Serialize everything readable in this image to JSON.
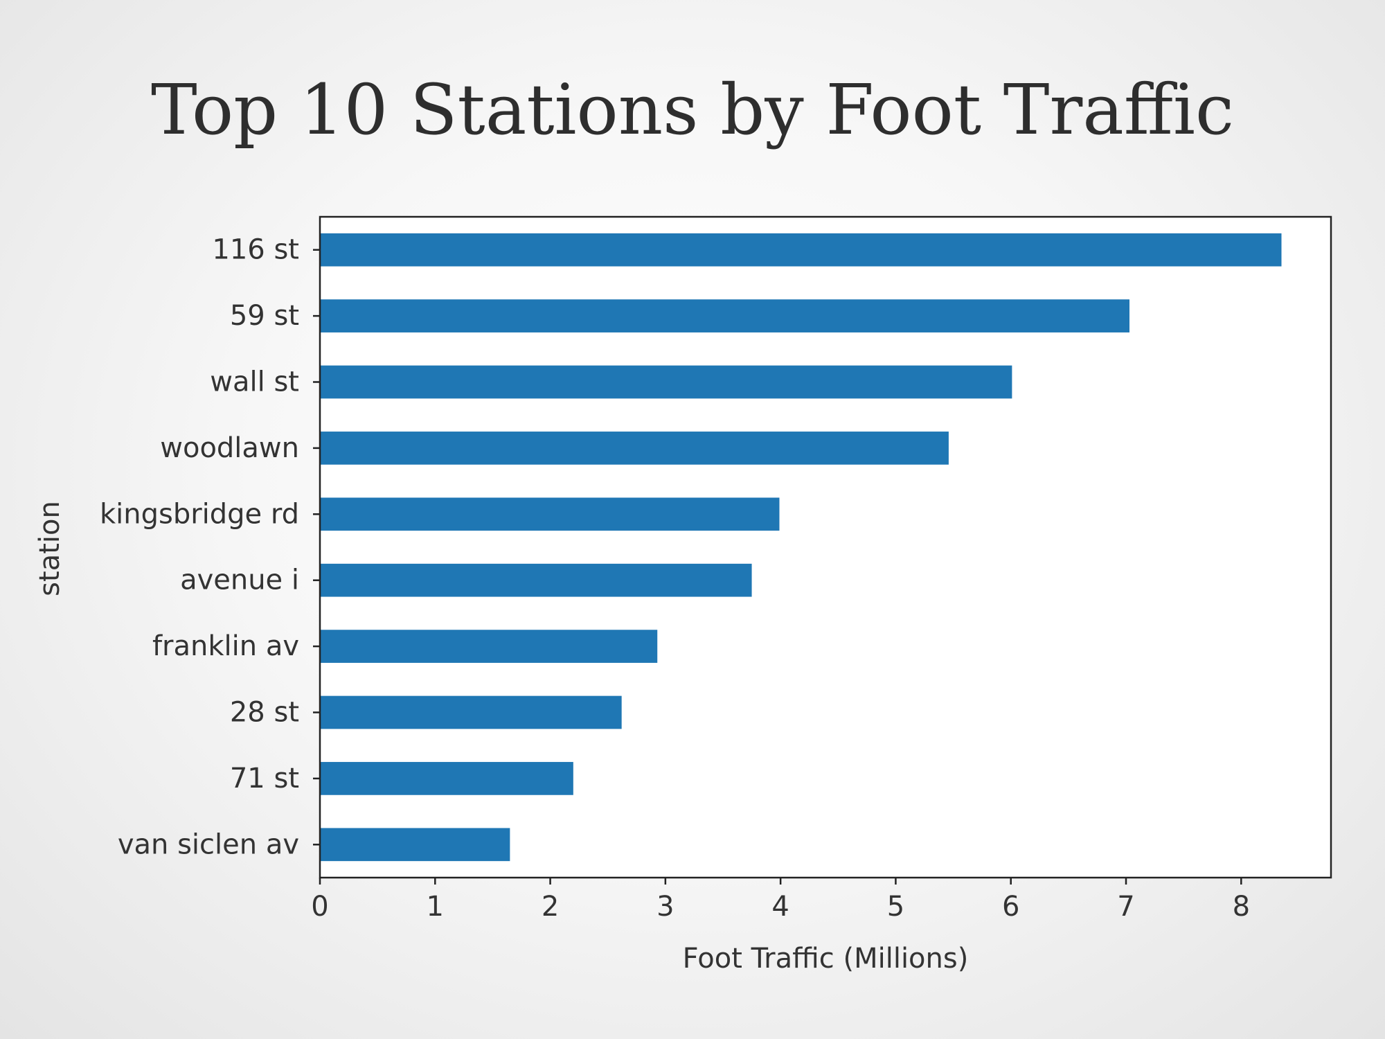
{
  "slide": {
    "title": "Top 10 Stations by Foot Traffic"
  },
  "chart_data": {
    "type": "bar",
    "orientation": "horizontal",
    "title": "",
    "xlabel": "Foot Traffic (Millions)",
    "ylabel": "station",
    "categories": [
      "116 st",
      "59 st",
      "wall st",
      "woodlawn",
      "kingsbridge rd",
      "avenue i",
      "franklin av",
      "28 st",
      "71 st",
      "van siclen av"
    ],
    "values": [
      8.35,
      7.03,
      6.01,
      5.46,
      3.99,
      3.75,
      2.93,
      2.62,
      2.2,
      1.65
    ],
    "xlim": [
      0,
      8.78
    ],
    "xticks": [
      0,
      1,
      2,
      3,
      4,
      5,
      6,
      7,
      8
    ],
    "bar_color": "#1f77b4",
    "grid": false
  }
}
